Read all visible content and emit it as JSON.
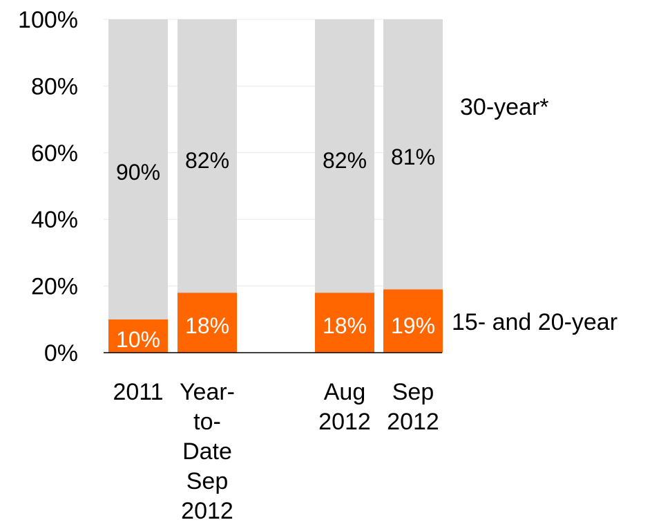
{
  "chart_data": {
    "type": "bar",
    "stacked": true,
    "percent_stacked": true,
    "title": "",
    "xlabel": "",
    "ylabel": "",
    "ylim": [
      0,
      100
    ],
    "y_ticks": [
      "0%",
      "20%",
      "40%",
      "60%",
      "80%",
      "100%"
    ],
    "y_tick_values": [
      0,
      20,
      40,
      60,
      80,
      100
    ],
    "grid": true,
    "categories": [
      [
        "2011"
      ],
      [
        "Year-",
        "to-",
        "Date",
        "Sep",
        "2012"
      ],
      [
        "Aug",
        "2012"
      ],
      [
        "Sep",
        "2012"
      ]
    ],
    "series": [
      {
        "name": "15- and 20-year",
        "color": "#ff6600",
        "label_color": "#ffffff",
        "values": [
          10,
          18,
          18,
          19
        ],
        "data_labels": [
          "10%",
          "18%",
          "18%",
          "19%"
        ]
      },
      {
        "name": "30-year*",
        "color": "#d9d9d9",
        "label_color": "#000000",
        "values": [
          90,
          82,
          82,
          81
        ],
        "data_labels": [
          "90%",
          "82%",
          "82%",
          "81%"
        ]
      }
    ],
    "legend": "inline-right"
  }
}
